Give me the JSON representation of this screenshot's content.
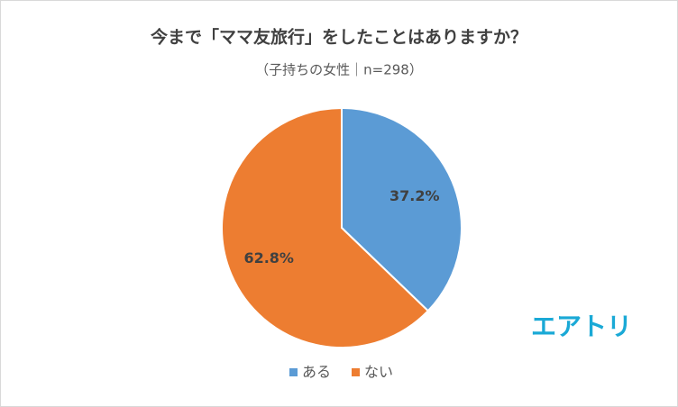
{
  "chart_data": {
    "type": "pie",
    "title": "今まで「ママ友旅行」をしたことはありますか？",
    "subtitle": "（子持ちの女性｜n=298）",
    "categories": [
      "ある",
      "ない"
    ],
    "values": [
      37.2,
      62.8
    ],
    "value_labels": [
      "37.2%",
      "62.8%"
    ],
    "colors": [
      "#5b9bd5",
      "#ed7d31"
    ],
    "legend": "bottom"
  },
  "logo": "エアトリ"
}
